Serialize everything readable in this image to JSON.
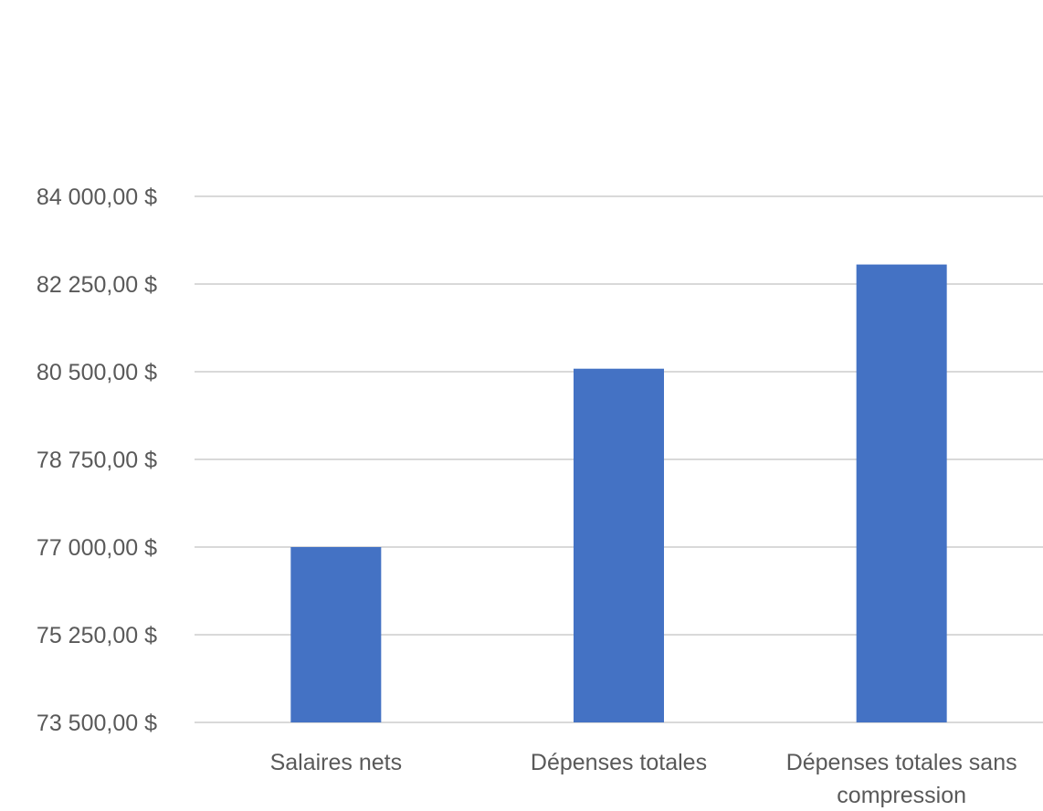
{
  "chart_data": {
    "type": "bar",
    "title": "",
    "xlabel": "",
    "ylabel": "",
    "categories": [
      [
        "Salaires nets"
      ],
      [
        "Dépenses totales"
      ],
      [
        "Dépenses totales sans",
        "compression"
      ]
    ],
    "values": [
      77000,
      80560,
      82640
    ],
    "ylim": [
      73500,
      84000
    ],
    "yticks": [
      84000,
      82250,
      80500,
      78750,
      77000,
      75250,
      73500
    ],
    "ytick_labels": [
      "84 000,00  $",
      "82 250,00  $",
      "80 500,00  $",
      "78 750,00  $",
      "77 000,00  $",
      "75 250,00  $",
      "73 500,00  $"
    ],
    "grid": true,
    "legend": "none",
    "colors": {
      "bar": "#4472c4",
      "grid": "#d9d9d9",
      "text": "#595959"
    }
  }
}
